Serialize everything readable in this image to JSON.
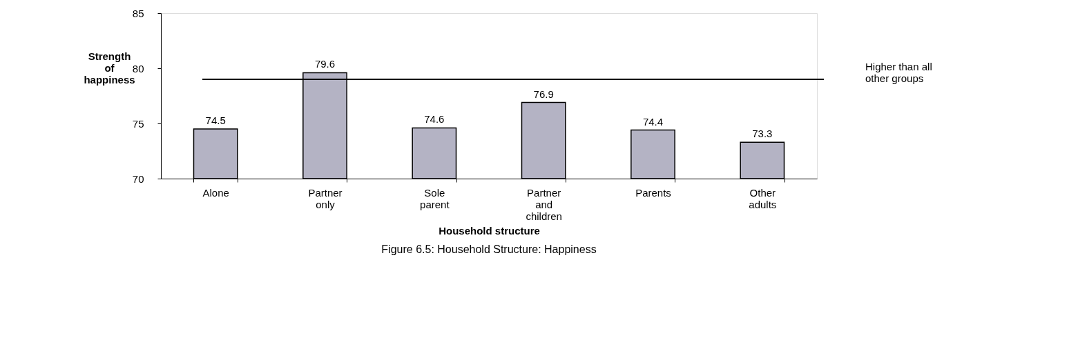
{
  "chart_data": {
    "type": "bar",
    "title": "Figure 6.5:  Household Structure:  Happiness",
    "xlabel": "Household structure",
    "ylabel": "Strength\nof\nhappiness",
    "categories": [
      "Alone",
      "Partner\nonly",
      "Sole\nparent",
      "Partner\nand\nchildren",
      "Parents",
      "Other\nadults"
    ],
    "values": [
      74.5,
      79.6,
      74.6,
      76.9,
      74.4,
      73.3
    ],
    "color": "#b4b3c4",
    "ylim": [
      70,
      85
    ],
    "yticks": [
      70,
      75,
      80,
      85
    ],
    "grid": false,
    "data_labels": true,
    "ref_lines": [
      {
        "axis": "y",
        "value": 79,
        "label": "Higher than all\nother groups",
        "color": "#000000"
      }
    ]
  }
}
